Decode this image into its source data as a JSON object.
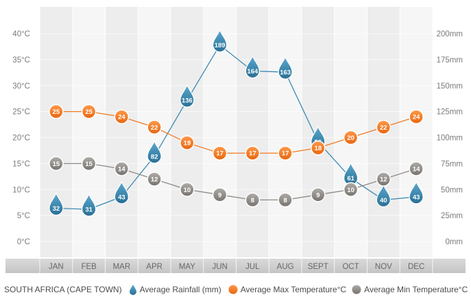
{
  "chart_data": {
    "type": "line",
    "title": "SOUTH AFRICA (CAPE TOWN)",
    "categories": [
      "JAN",
      "FEB",
      "MAR",
      "APR",
      "MAY",
      "JUN",
      "JUL",
      "AUG",
      "SEPT",
      "OCT",
      "NOV",
      "DEC"
    ],
    "y_left": {
      "ticks": [
        "0°C",
        "5°C",
        "10°C",
        "15°C",
        "20°C",
        "25°C",
        "30°C",
        "35°C",
        "40°C"
      ],
      "ylim": [
        0,
        40
      ]
    },
    "y_right": {
      "ticks": [
        "0mm",
        "25mm",
        "50mm",
        "75mm",
        "100mm",
        "125mm",
        "150mm",
        "175mm",
        "200mm"
      ],
      "ylim": [
        0,
        200
      ]
    },
    "grid": true,
    "legend_position": "bottom",
    "series": [
      {
        "name": "Average Rainfall (mm)",
        "axis": "right",
        "marker": "drop",
        "color": "#3a8bb3",
        "values": [
          32,
          31,
          43,
          82,
          136,
          189,
          164,
          163,
          96,
          61,
          40,
          43
        ]
      },
      {
        "name": "Average Max Temperature°C",
        "axis": "left",
        "marker": "circle",
        "color": "#f07a22",
        "values": [
          25,
          25,
          24,
          22,
          19,
          17,
          17,
          17,
          18,
          20,
          22,
          24
        ]
      },
      {
        "name": "Average Min Temperature°C",
        "axis": "left",
        "marker": "circle",
        "color": "#8e8a86",
        "values": [
          15,
          15,
          14,
          12,
          10,
          9,
          8,
          8,
          9,
          10,
          12,
          14
        ]
      }
    ]
  }
}
